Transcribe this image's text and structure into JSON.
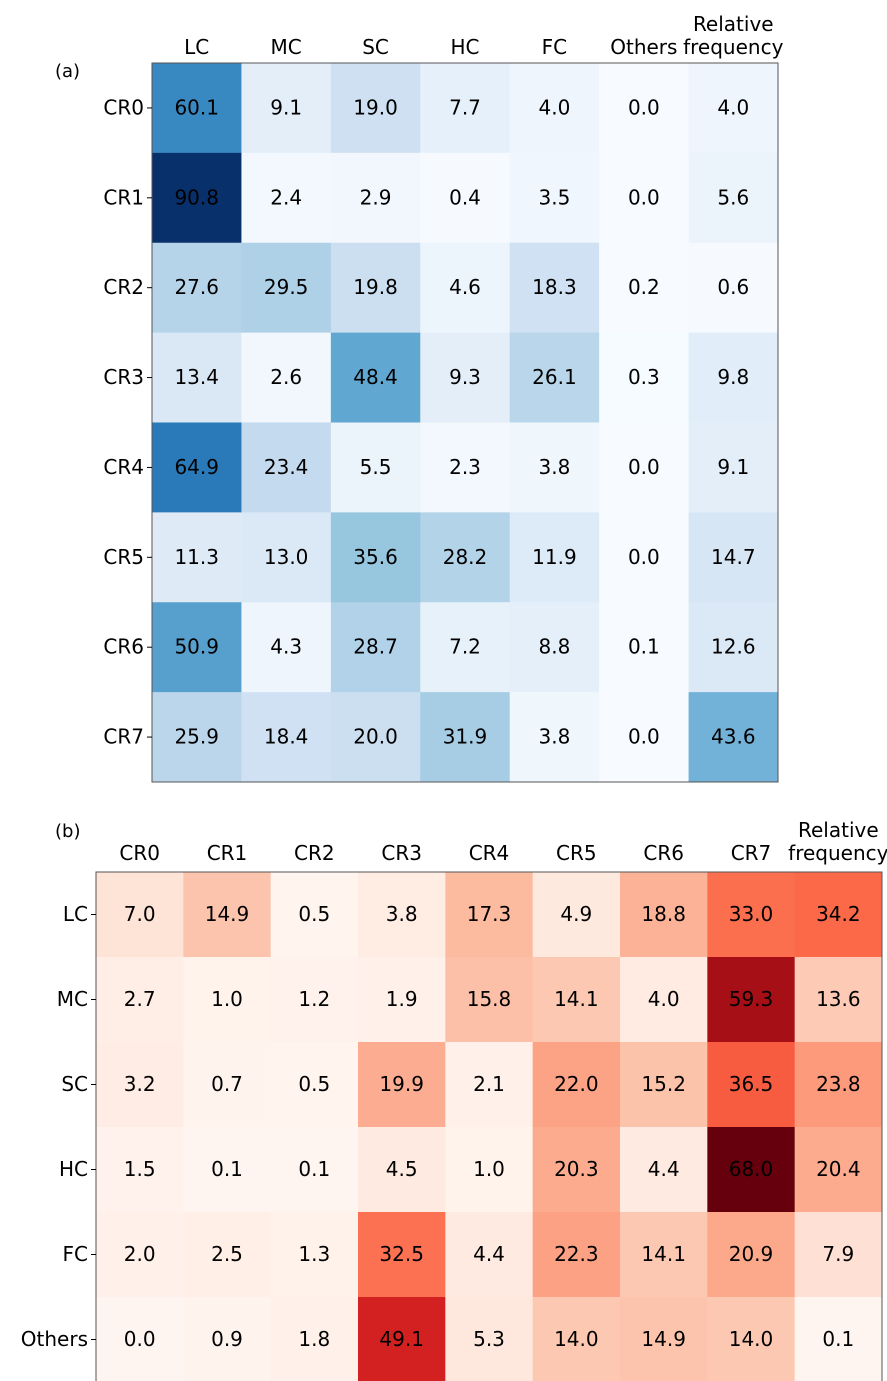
{
  "chart_data": [
    {
      "type": "heatmap",
      "label": "(a)",
      "x_categories": [
        "LC",
        "MC",
        "SC",
        "HC",
        "FC",
        "Others",
        "Relative frequency"
      ],
      "y_categories": [
        "CR0",
        "CR1",
        "CR2",
        "CR3",
        "CR4",
        "CR5",
        "CR6",
        "CR7"
      ],
      "values": [
        [
          60.1,
          9.1,
          19.0,
          7.7,
          4.0,
          0.0,
          4.0
        ],
        [
          90.8,
          2.4,
          2.9,
          0.4,
          3.5,
          0.0,
          5.6
        ],
        [
          27.6,
          29.5,
          19.8,
          4.6,
          18.3,
          0.2,
          0.6
        ],
        [
          13.4,
          2.6,
          48.4,
          9.3,
          26.1,
          0.3,
          9.8
        ],
        [
          64.9,
          23.4,
          5.5,
          2.3,
          3.8,
          0.0,
          9.1
        ],
        [
          11.3,
          13.0,
          35.6,
          28.2,
          11.9,
          0.0,
          14.7
        ],
        [
          50.9,
          4.3,
          28.7,
          7.2,
          8.8,
          0.1,
          12.6
        ],
        [
          25.9,
          18.4,
          20.0,
          31.9,
          3.8,
          0.0,
          43.6
        ]
      ],
      "value_labels": [
        [
          "60.1",
          "9.1",
          "19.0",
          "7.7",
          "4.0",
          "0.0",
          "4.0"
        ],
        [
          "90.8",
          "2.4",
          "2.9",
          "0.4",
          "3.5",
          "0.0",
          "5.6"
        ],
        [
          "27.6",
          "29.5",
          "19.8",
          "4.6",
          "18.3",
          "0.2",
          "0.6"
        ],
        [
          "13.4",
          "2.6",
          "48.4",
          "9.3",
          "26.1",
          "0.3",
          "9.8"
        ],
        [
          "64.9",
          "23.4",
          "5.5",
          "2.3",
          "3.8",
          "0.0",
          "9.1"
        ],
        [
          "11.3",
          "13.0",
          "35.6",
          "28.2",
          "11.9",
          "0.0",
          "14.7"
        ],
        [
          "50.9",
          "4.3",
          "28.7",
          "7.2",
          "8.8",
          "0.1",
          "12.6"
        ],
        [
          "25.9",
          "18.4",
          "20.0",
          "31.9",
          "3.8",
          "0.0",
          "43.6"
        ]
      ],
      "colormap": [
        "#f7fbff",
        "#deebf7",
        "#c6dbef",
        "#9ecae1",
        "#6baed6",
        "#4292c6",
        "#2171b5",
        "#08519c",
        "#08306b"
      ]
    },
    {
      "type": "heatmap",
      "label": "(b)",
      "x_categories": [
        "CR0",
        "CR1",
        "CR2",
        "CR3",
        "CR4",
        "CR5",
        "CR6",
        "CR7",
        "Relative frequency"
      ],
      "y_categories": [
        "LC",
        "MC",
        "SC",
        "HC",
        "FC",
        "Others"
      ],
      "values": [
        [
          7.0,
          14.9,
          0.5,
          3.8,
          17.3,
          4.9,
          18.8,
          33.0,
          34.2
        ],
        [
          2.7,
          1.0,
          1.2,
          1.9,
          15.8,
          14.1,
          4.0,
          59.3,
          13.6
        ],
        [
          3.2,
          0.7,
          0.5,
          19.9,
          2.1,
          22.0,
          15.2,
          36.5,
          23.8
        ],
        [
          1.5,
          0.1,
          0.1,
          4.5,
          1.0,
          20.3,
          4.4,
          68.0,
          20.4
        ],
        [
          2.0,
          2.5,
          1.3,
          32.5,
          4.4,
          22.3,
          14.1,
          20.9,
          7.9
        ],
        [
          0.0,
          0.9,
          1.8,
          49.1,
          5.3,
          14.0,
          14.9,
          14.0,
          0.1
        ]
      ],
      "value_labels": [
        [
          "7.0",
          "14.9",
          "0.5",
          "3.8",
          "17.3",
          "4.9",
          "18.8",
          "33.0",
          "34.2"
        ],
        [
          "2.7",
          "1.0",
          "1.2",
          "1.9",
          "15.8",
          "14.1",
          "4.0",
          "59.3",
          "13.6"
        ],
        [
          "3.2",
          "0.7",
          "0.5",
          "19.9",
          "2.1",
          "22.0",
          "15.2",
          "36.5",
          "23.8"
        ],
        [
          "1.5",
          "0.1",
          "0.1",
          "4.5",
          "1.0",
          "20.3",
          "4.4",
          "68.0",
          "20.4"
        ],
        [
          "2.0",
          "2.5",
          "1.3",
          "32.5",
          "4.4",
          "22.3",
          "14.1",
          "20.9",
          "7.9"
        ],
        [
          "0.0",
          "0.9",
          "1.8",
          "49.1",
          "5.3",
          "14.0",
          "14.9",
          "14.0",
          "0.1"
        ]
      ],
      "colormap": [
        "#fff5f0",
        "#fee0d2",
        "#fcbba1",
        "#fc9272",
        "#fb6a4a",
        "#ef3b2c",
        "#cb181d",
        "#a50f15",
        "#67000d"
      ]
    }
  ]
}
